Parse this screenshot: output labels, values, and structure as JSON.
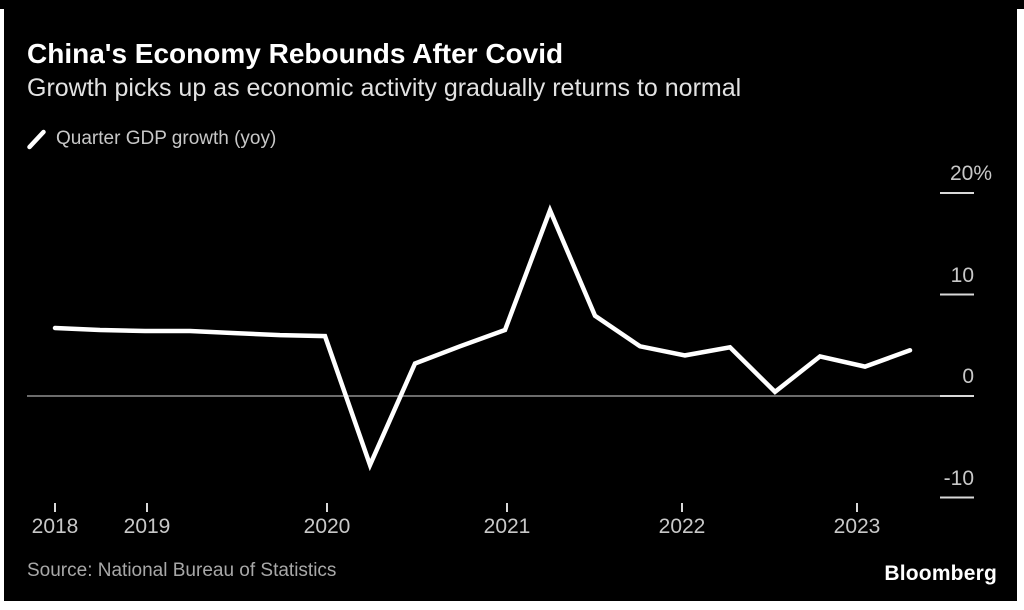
{
  "colors": {
    "page_background": "#ffffff",
    "card_background": "#000000",
    "line": "#ffffff",
    "title_text": "#ffffff",
    "subtitle_text": "#e2e2e2",
    "axis_text": "#c8c8c8",
    "legend_text": "#c8c8c8",
    "source_text": "#a8a8a8",
    "zero_line": "#8f8f8f",
    "tick": "#d9d9d9"
  },
  "footer": {
    "source": "Source: National Bureau of Statistics",
    "brand": "Bloomberg"
  },
  "chart_data": {
    "type": "line",
    "title": "China's Economy Rebounds After Covid",
    "subtitle": "Growth picks up as economic activity gradually returns to normal",
    "legend": [
      "Quarter GDP growth (yoy)"
    ],
    "legend_position": "top-left",
    "unit": "% year-over-year",
    "x": [
      "2018 Q2",
      "2018 Q3",
      "2018 Q4",
      "2019 Q1",
      "2019 Q2",
      "2019 Q3",
      "2019 Q4",
      "2020 Q1",
      "2020 Q2",
      "2020 Q3",
      "2020 Q4",
      "2021 Q1",
      "2021 Q2",
      "2021 Q3",
      "2021 Q4",
      "2022 Q1",
      "2022 Q2",
      "2022 Q3",
      "2022 Q4",
      "2023 Q1"
    ],
    "series": [
      {
        "name": "Quarter GDP growth (yoy)",
        "values": [
          6.7,
          6.5,
          6.4,
          6.4,
          6.2,
          6.0,
          5.9,
          -6.8,
          3.2,
          4.9,
          6.5,
          18.3,
          7.9,
          4.9,
          4.0,
          4.8,
          0.4,
          3.9,
          2.9,
          4.5
        ]
      }
    ],
    "y_axis": {
      "side": "right",
      "tick_values": [
        20,
        10,
        0,
        -10
      ],
      "tick_labels": [
        "20%",
        "10",
        "0",
        "-10"
      ],
      "range": [
        -11,
        23
      ]
    },
    "x_axis": {
      "tick_labels": [
        "2018",
        "2019",
        "2020",
        "2021",
        "2022",
        "2023"
      ]
    },
    "grid": "zero-baseline-only"
  }
}
